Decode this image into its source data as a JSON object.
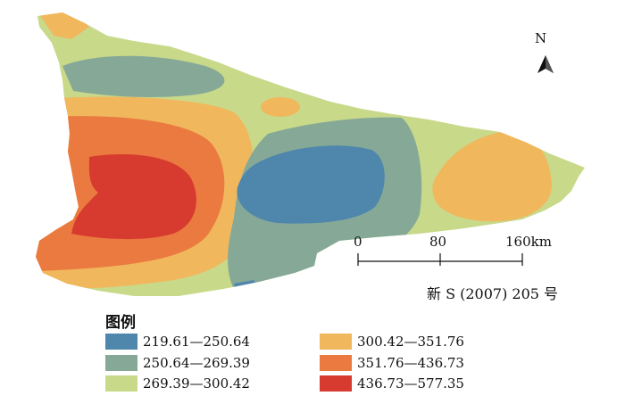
{
  "map": {
    "north_label": "N",
    "scale": {
      "ticks": [
        "0",
        "80",
        "160km"
      ]
    },
    "map_number": "新 S (2007) 205 号"
  },
  "legend": {
    "title": "图例",
    "items": [
      {
        "label": "219.61—250.64",
        "color": "#4f86ac"
      },
      {
        "label": "250.64—269.39",
        "color": "#86a897"
      },
      {
        "label": "269.39—300.42",
        "color": "#c8d98a"
      },
      {
        "label": "300.42—351.76",
        "color": "#f1b75d"
      },
      {
        "label": "351.76—436.73",
        "color": "#ea7a40"
      },
      {
        "label": "436.73—577.35",
        "color": "#d73a2e"
      }
    ]
  }
}
